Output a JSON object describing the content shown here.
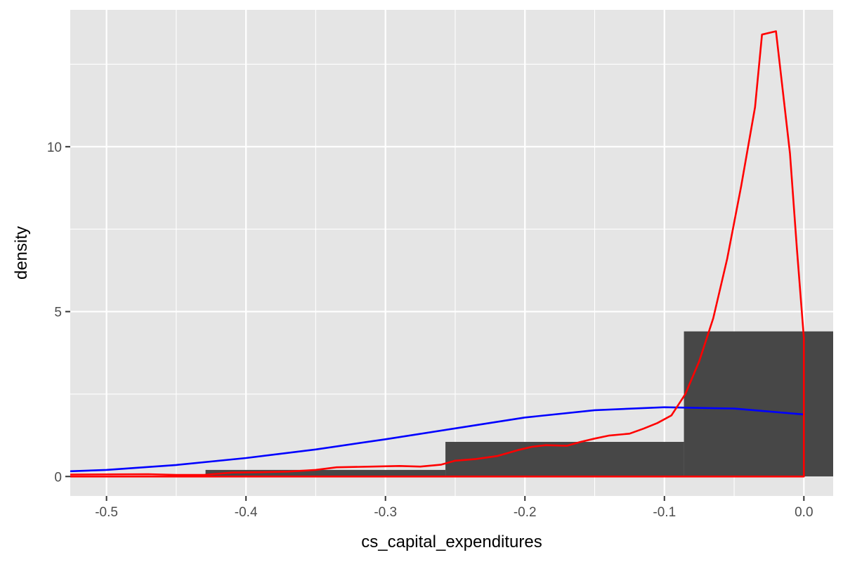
{
  "chart_data": {
    "type": "bar",
    "xlabel": "cs_capital_expenditures",
    "ylabel": "density",
    "xlim": [
      -0.526,
      0.021
    ],
    "ylim": [
      -0.59,
      14.15
    ],
    "x_ticks": [
      -0.5,
      -0.4,
      -0.3,
      -0.2,
      -0.1,
      0.0
    ],
    "x_tick_labels": [
      "-0.5",
      "-0.4",
      "-0.3",
      "-0.2",
      "-0.1",
      "0.0"
    ],
    "y_ticks": [
      0,
      5,
      10
    ],
    "y_tick_labels": [
      "0",
      "5",
      "10"
    ],
    "grid": true,
    "colors": {
      "panel": "#e5e5e5",
      "bars": "#474747",
      "blue_curve": "#0000ff",
      "red_curve": "#ff0000"
    },
    "histogram": {
      "bins": [
        {
          "xmin": -0.6,
          "xmax": -0.429,
          "density": 0.0
        },
        {
          "xmin": -0.429,
          "xmax": -0.257,
          "density": 0.2
        },
        {
          "xmin": -0.257,
          "xmax": -0.086,
          "density": 1.05
        },
        {
          "xmin": -0.086,
          "xmax": 0.086,
          "density": 4.4
        }
      ]
    },
    "series": [
      {
        "color": "#0000ff",
        "points": [
          [
            -0.526,
            0.16
          ],
          [
            -0.5,
            0.2
          ],
          [
            -0.45,
            0.35
          ],
          [
            -0.4,
            0.56
          ],
          [
            -0.35,
            0.82
          ],
          [
            -0.3,
            1.13
          ],
          [
            -0.25,
            1.46
          ],
          [
            -0.2,
            1.79
          ],
          [
            -0.15,
            2.01
          ],
          [
            -0.1,
            2.1
          ],
          [
            -0.05,
            2.06
          ],
          [
            0.0,
            1.88
          ]
        ]
      },
      {
        "color": "#ff0000",
        "points": [
          [
            -0.526,
            0.06
          ],
          [
            -0.47,
            0.07
          ],
          [
            -0.45,
            0.05
          ],
          [
            -0.43,
            0.05
          ],
          [
            -0.41,
            0.12
          ],
          [
            -0.39,
            0.13
          ],
          [
            -0.37,
            0.15
          ],
          [
            -0.35,
            0.2
          ],
          [
            -0.335,
            0.28
          ],
          [
            -0.31,
            0.3
          ],
          [
            -0.29,
            0.32
          ],
          [
            -0.275,
            0.3
          ],
          [
            -0.26,
            0.36
          ],
          [
            -0.25,
            0.48
          ],
          [
            -0.235,
            0.53
          ],
          [
            -0.22,
            0.62
          ],
          [
            -0.205,
            0.8
          ],
          [
            -0.195,
            0.9
          ],
          [
            -0.185,
            0.95
          ],
          [
            -0.17,
            0.93
          ],
          [
            -0.16,
            1.05
          ],
          [
            -0.15,
            1.15
          ],
          [
            -0.14,
            1.24
          ],
          [
            -0.125,
            1.3
          ],
          [
            -0.115,
            1.45
          ],
          [
            -0.105,
            1.62
          ],
          [
            -0.095,
            1.85
          ],
          [
            -0.085,
            2.5
          ],
          [
            -0.075,
            3.5
          ],
          [
            -0.065,
            4.8
          ],
          [
            -0.055,
            6.6
          ],
          [
            -0.045,
            8.8
          ],
          [
            -0.035,
            11.2
          ],
          [
            -0.03,
            13.4
          ],
          [
            -0.02,
            13.5
          ],
          [
            -0.01,
            9.8
          ],
          [
            -0.005,
            6.9
          ],
          [
            0.0,
            4.2
          ],
          [
            0.0,
            0.0
          ],
          [
            -0.526,
            0.0
          ]
        ]
      }
    ]
  }
}
